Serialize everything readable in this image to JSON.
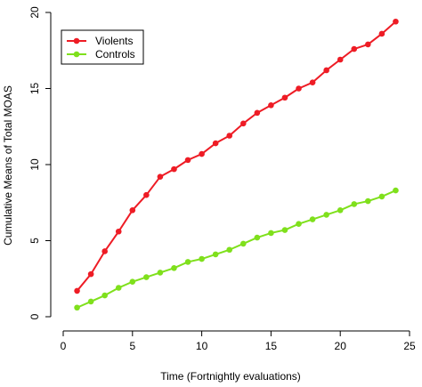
{
  "chart_data": {
    "type": "line",
    "title": "",
    "xlabel": "Time (Fortnightly evaluations)",
    "ylabel": "Cumulative Means of Total MOAS",
    "xlim": [
      0,
      25
    ],
    "ylim": [
      0,
      20
    ],
    "x_ticks": [
      0,
      5,
      10,
      15,
      20,
      25
    ],
    "y_ticks": [
      0,
      5,
      10,
      15,
      20
    ],
    "grid": false,
    "legend_position": "top-left",
    "x": [
      1,
      2,
      3,
      4,
      5,
      6,
      7,
      8,
      9,
      10,
      11,
      12,
      13,
      14,
      15,
      16,
      17,
      18,
      19,
      20,
      21,
      22,
      23,
      24
    ],
    "series": [
      {
        "name": "Violents",
        "color": "#ee1c25",
        "values": [
          1.7,
          2.8,
          4.3,
          5.6,
          7.0,
          8.0,
          9.2,
          9.7,
          10.3,
          10.7,
          11.4,
          11.9,
          12.7,
          13.4,
          13.9,
          14.4,
          15.0,
          15.4,
          16.2,
          16.9,
          17.6,
          17.9,
          18.6,
          19.4
        ]
      },
      {
        "name": "Controls",
        "color": "#7fe01c",
        "values": [
          0.6,
          1.0,
          1.4,
          1.9,
          2.3,
          2.6,
          2.9,
          3.2,
          3.6,
          3.8,
          4.1,
          4.4,
          4.8,
          5.2,
          5.5,
          5.7,
          6.1,
          6.4,
          6.7,
          7.0,
          7.4,
          7.6,
          7.9,
          8.3
        ]
      }
    ]
  }
}
